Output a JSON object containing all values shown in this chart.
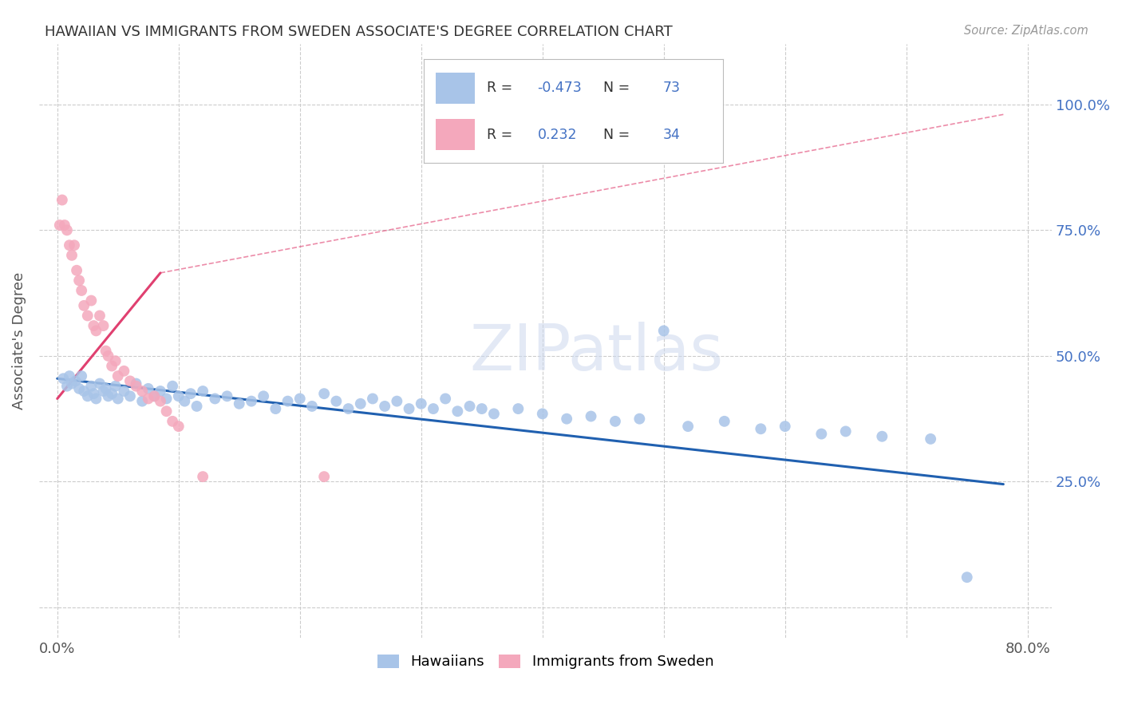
{
  "title": "HAWAIIAN VS IMMIGRANTS FROM SWEDEN ASSOCIATE'S DEGREE CORRELATION CHART",
  "source": "Source: ZipAtlas.com",
  "ylabel": "Associate's Degree",
  "watermark": "ZIPatlas",
  "blue_R": -0.473,
  "blue_N": 73,
  "pink_R": 0.232,
  "pink_N": 34,
  "blue_color": "#a8c4e8",
  "pink_color": "#f4a8bc",
  "blue_line_color": "#2060b0",
  "pink_line_color": "#e04070",
  "legend_blue_label": "Hawaiians",
  "legend_pink_label": "Immigrants from Sweden",
  "blue_line_x0": 0.0,
  "blue_line_y0": 0.455,
  "blue_line_x1": 0.78,
  "blue_line_y1": 0.245,
  "pink_line_solid_x0": 0.0,
  "pink_line_solid_y0": 0.415,
  "pink_line_solid_x1": 0.085,
  "pink_line_solid_y1": 0.665,
  "pink_line_dash_x0": 0.085,
  "pink_line_dash_y0": 0.665,
  "pink_line_dash_x1": 0.78,
  "pink_line_dash_y1": 0.98,
  "xlim": [
    -0.015,
    0.82
  ],
  "ylim": [
    -0.06,
    1.12
  ],
  "blue_scatter_x": [
    0.005,
    0.008,
    0.01,
    0.012,
    0.015,
    0.018,
    0.02,
    0.022,
    0.025,
    0.028,
    0.03,
    0.032,
    0.035,
    0.038,
    0.04,
    0.042,
    0.045,
    0.048,
    0.05,
    0.055,
    0.06,
    0.065,
    0.07,
    0.075,
    0.08,
    0.085,
    0.09,
    0.095,
    0.1,
    0.105,
    0.11,
    0.115,
    0.12,
    0.13,
    0.14,
    0.15,
    0.16,
    0.17,
    0.18,
    0.19,
    0.2,
    0.21,
    0.22,
    0.23,
    0.24,
    0.25,
    0.26,
    0.27,
    0.28,
    0.29,
    0.3,
    0.31,
    0.32,
    0.33,
    0.34,
    0.35,
    0.36,
    0.38,
    0.4,
    0.42,
    0.44,
    0.46,
    0.48,
    0.5,
    0.52,
    0.55,
    0.58,
    0.6,
    0.63,
    0.65,
    0.68,
    0.72,
    0.75
  ],
  "blue_scatter_y": [
    0.455,
    0.44,
    0.46,
    0.445,
    0.45,
    0.435,
    0.46,
    0.43,
    0.42,
    0.44,
    0.425,
    0.415,
    0.445,
    0.43,
    0.435,
    0.42,
    0.425,
    0.44,
    0.415,
    0.43,
    0.42,
    0.445,
    0.41,
    0.435,
    0.42,
    0.43,
    0.415,
    0.44,
    0.42,
    0.41,
    0.425,
    0.4,
    0.43,
    0.415,
    0.42,
    0.405,
    0.41,
    0.42,
    0.395,
    0.41,
    0.415,
    0.4,
    0.425,
    0.41,
    0.395,
    0.405,
    0.415,
    0.4,
    0.41,
    0.395,
    0.405,
    0.395,
    0.415,
    0.39,
    0.4,
    0.395,
    0.385,
    0.395,
    0.385,
    0.375,
    0.38,
    0.37,
    0.375,
    0.55,
    0.36,
    0.37,
    0.355,
    0.36,
    0.345,
    0.35,
    0.34,
    0.335,
    0.06
  ],
  "pink_scatter_x": [
    0.002,
    0.004,
    0.006,
    0.008,
    0.01,
    0.012,
    0.014,
    0.016,
    0.018,
    0.02,
    0.022,
    0.025,
    0.028,
    0.03,
    0.032,
    0.035,
    0.038,
    0.04,
    0.042,
    0.045,
    0.048,
    0.05,
    0.055,
    0.06,
    0.065,
    0.07,
    0.075,
    0.08,
    0.085,
    0.09,
    0.095,
    0.1,
    0.12,
    0.22
  ],
  "pink_scatter_y": [
    0.76,
    0.81,
    0.76,
    0.75,
    0.72,
    0.7,
    0.72,
    0.67,
    0.65,
    0.63,
    0.6,
    0.58,
    0.61,
    0.56,
    0.55,
    0.58,
    0.56,
    0.51,
    0.5,
    0.48,
    0.49,
    0.46,
    0.47,
    0.45,
    0.44,
    0.43,
    0.415,
    0.42,
    0.41,
    0.39,
    0.37,
    0.36,
    0.26,
    0.26
  ]
}
